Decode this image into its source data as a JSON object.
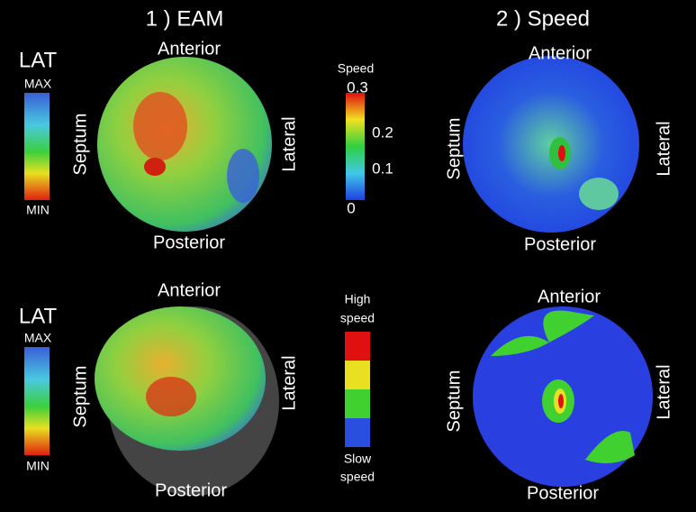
{
  "columns": [
    "1 ) EAM",
    "2 ) Speed"
  ],
  "panels": [
    {
      "anterior": "Anterior",
      "posterior": "Posterior",
      "septum": "Septum",
      "lateral": "Lateral"
    },
    {
      "anterior": "Anterior",
      "posterior": "Posterior",
      "septum": "Septum",
      "lateral": "Lateral"
    },
    {
      "anterior": "Anterior",
      "posterior": "Posterior",
      "septum": "Septum",
      "lateral": "Lateral"
    },
    {
      "anterior": "Anterior",
      "posterior": "Posterior",
      "septum": "Septum",
      "lateral": "Lateral"
    }
  ],
  "lat_legends": [
    {
      "title": "LAT",
      "max": "MAX",
      "min": "MIN"
    },
    {
      "title": "LAT",
      "max": "MAX",
      "min": "MIN"
    }
  ],
  "speed_colorbar": {
    "title": "Speed",
    "ticks": [
      0.3,
      0.2,
      0.1,
      0
    ]
  },
  "speed_categories": {
    "high": [
      "High",
      "speed"
    ],
    "slow": [
      "Slow",
      "speed"
    ]
  }
}
